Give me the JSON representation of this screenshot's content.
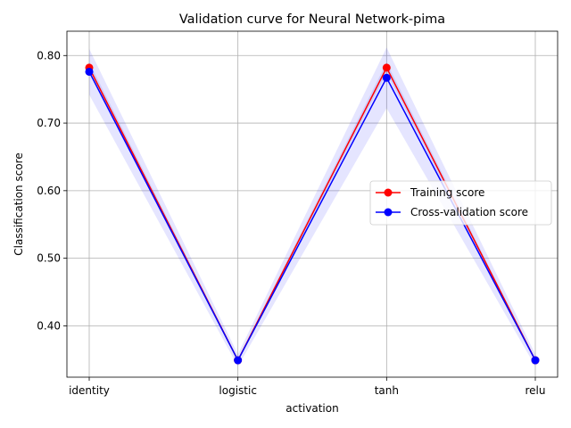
{
  "chart_data": {
    "type": "line",
    "title": "Validation curve for Neural Network-pima",
    "xlabel": "activation",
    "ylabel": "Classification score",
    "categories": [
      "identity",
      "logistic",
      "tanh",
      "relu"
    ],
    "ylim": [
      0.324,
      0.836
    ],
    "yticks": [
      0.4,
      0.5,
      0.6,
      0.7,
      0.8
    ],
    "ytick_labels": [
      "0.40",
      "0.50",
      "0.60",
      "0.70",
      "0.80"
    ],
    "grid": true,
    "legend_position": "center-right",
    "series": [
      {
        "name": "Training score",
        "color": "#ff0000",
        "values": [
          0.782,
          0.349,
          0.782,
          0.349
        ],
        "band": [
          [
            0.774,
            0.79
          ],
          [
            0.347,
            0.351
          ],
          [
            0.774,
            0.79
          ],
          [
            0.347,
            0.351
          ]
        ]
      },
      {
        "name": "Cross-validation score",
        "color": "#0000ff",
        "values": [
          0.776,
          0.349,
          0.767,
          0.349
        ],
        "band": [
          [
            0.742,
            0.81
          ],
          [
            0.34,
            0.358
          ],
          [
            0.722,
            0.812
          ],
          [
            0.34,
            0.358
          ]
        ]
      }
    ]
  }
}
